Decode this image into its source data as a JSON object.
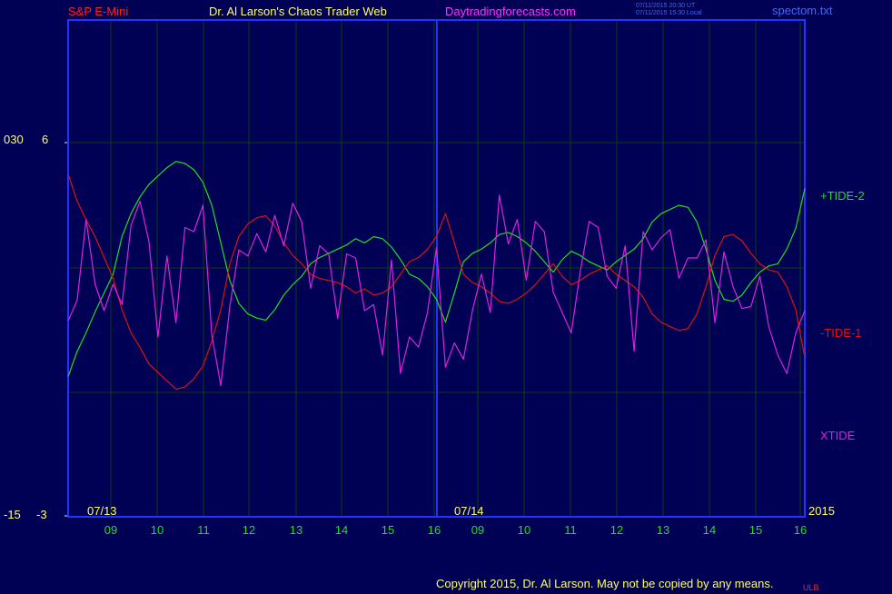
{
  "header": {
    "symbol": "S&P E-Mini",
    "title": "Dr. Al Larson's Chaos Trader Web",
    "site": "Daytradingforecasts.com",
    "stamp_utc": "07/11/2015 20:30 UT",
    "stamp_local": "07/11/2015 15:30 Local",
    "filename": "spectom.txt"
  },
  "left_axis": {
    "label_030": "030",
    "label_6": "6",
    "label_neg15": "-15",
    "label_neg3": "-3"
  },
  "date_labels": {
    "first": "07/13",
    "second": "07/14",
    "year": "2015"
  },
  "footer": {
    "copyright": "Copyright 2015, Dr. Al Larson. May not be copied by any means.",
    "ulb": "ULB"
  },
  "colors": {
    "background": "#000055",
    "frame": "#2233ff",
    "grid": "#0f3d0f",
    "tide_plus": "#22dd22",
    "tide_minus": "#dd1111",
    "xtide": "#dd22dd",
    "yellow": "#ffff66",
    "header_red": "#ff2222",
    "header_magenta": "#ff33ff",
    "hour_green": "#22dd22"
  },
  "chart_data": {
    "type": "line",
    "x_ticks": [
      "09",
      "10",
      "11",
      "12",
      "13",
      "14",
      "15",
      "16",
      "09",
      "10",
      "11",
      "12",
      "13",
      "14",
      "15",
      "16"
    ],
    "series": [
      {
        "name": "+TIDE-2",
        "color": "#22dd22",
        "values": [
          -5.2,
          -4.0,
          -3.1,
          -2.1,
          -1.2,
          -0.3,
          1.5,
          2.6,
          3.4,
          4.0,
          4.4,
          4.8,
          5.1,
          5.0,
          4.7,
          4.1,
          3.0,
          1.2,
          -0.6,
          -1.7,
          -2.2,
          -2.4,
          -2.5,
          -2.0,
          -1.3,
          -0.8,
          -0.4,
          0.2,
          0.5,
          0.7,
          0.9,
          1.1,
          1.4,
          1.2,
          1.5,
          1.4,
          1.0,
          0.4,
          -0.3,
          -0.5,
          -0.9,
          -1.5,
          -2.6,
          -1.2,
          0.3,
          0.7,
          0.9,
          1.2,
          1.6,
          1.7,
          1.5,
          1.2,
          0.8,
          0.3,
          -0.2,
          0.4,
          0.8,
          0.6,
          0.3,
          0.1,
          -0.1,
          0.3,
          0.6,
          0.9,
          1.4,
          2.2,
          2.6,
          2.8,
          3.0,
          2.9,
          2.2,
          0.9,
          -0.6,
          -1.5,
          -1.6,
          -1.3,
          -0.7,
          -0.2,
          0.1,
          0.2,
          0.9,
          1.9,
          3.8
        ]
      },
      {
        "name": "-TIDE-1",
        "color": "#dd1111",
        "values": [
          4.5,
          3.2,
          2.3,
          1.5,
          0.5,
          -0.5,
          -2.0,
          -3.1,
          -3.8,
          -4.6,
          -5.0,
          -5.4,
          -5.8,
          -5.7,
          -5.3,
          -4.7,
          -3.5,
          -2.0,
          0.2,
          1.5,
          2.1,
          2.4,
          2.5,
          2.0,
          1.2,
          0.6,
          0.2,
          -0.3,
          -0.5,
          -0.6,
          -0.7,
          -0.9,
          -1.2,
          -1.0,
          -1.3,
          -1.2,
          -0.9,
          -0.3,
          0.3,
          0.5,
          0.9,
          1.5,
          2.6,
          1.2,
          -0.3,
          -0.7,
          -0.9,
          -1.2,
          -1.6,
          -1.7,
          -1.5,
          -1.2,
          -0.8,
          -0.3,
          0.2,
          -0.4,
          -0.8,
          -0.6,
          -0.3,
          -0.1,
          0.1,
          -0.3,
          -0.6,
          -0.9,
          -1.4,
          -2.2,
          -2.6,
          -2.8,
          -3.0,
          -2.9,
          -2.2,
          -0.9,
          0.6,
          1.5,
          1.6,
          1.3,
          0.7,
          0.2,
          -0.1,
          -0.2,
          -0.9,
          -2.0,
          -4.3
        ]
      },
      {
        "name": "XTIDE",
        "color": "#dd22dd",
        "values": [
          -5.6,
          -6.6,
          -10.6,
          -7.4,
          -6.1,
          -7.4,
          -6.4,
          -10.3,
          -11.5,
          -9.5,
          -4.8,
          -8.8,
          -5.5,
          -10.2,
          -10.0,
          -11.3,
          -4.9,
          -2.4,
          -6.3,
          -9.1,
          -8.8,
          -9.9,
          -9.0,
          -10.8,
          -9.3,
          -11.4,
          -10.5,
          -7.2,
          -9.3,
          -8.9,
          -5.7,
          -8.9,
          -8.7,
          -6.1,
          -6.4,
          -3.9,
          -8.6,
          -3.0,
          -4.8,
          -4.3,
          -6.0,
          -9.2,
          -3.3,
          -4.5,
          -3.7,
          -6.1,
          -7.9,
          -6.0,
          -11.8,
          -9.4,
          -10.6,
          -7.6,
          -10.5,
          -10.0,
          -7.0,
          -6.0,
          -5.0,
          -8.0,
          -10.5,
          -10.2,
          -7.8,
          -7.2,
          -9.3,
          -4.1,
          -10.0,
          -9.1,
          -9.7,
          -10.1,
          -7.7,
          -8.7,
          -8.7,
          -9.6,
          -5.5,
          -9.0,
          -7.3,
          -6.2,
          -6.3,
          -7.8,
          -5.3,
          -3.9,
          -3.0,
          -5.0,
          -6.1
        ]
      }
    ]
  }
}
